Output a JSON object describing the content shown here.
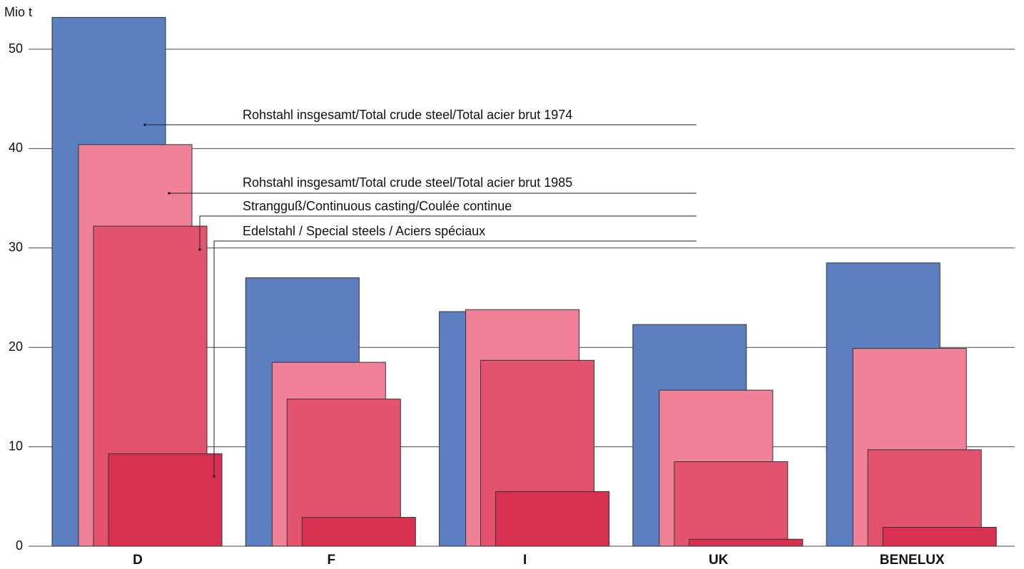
{
  "chart_data": {
    "type": "bar",
    "ylabel": "Mio t",
    "categories": [
      "D",
      "F",
      "I",
      "UK",
      "BENELUX"
    ],
    "series": [
      {
        "name": "Rohstahl insgesamt/Total crude steel/Total acier brut 1974",
        "color": "#5b7fc0",
        "values": [
          53.2,
          27.0,
          23.6,
          22.3,
          28.5
        ]
      },
      {
        "name": "Rohstahl insgesamt/Total crude steel/Total acier brut 1985",
        "color": "#f08199",
        "values": [
          40.4,
          18.5,
          23.8,
          15.7,
          19.9
        ]
      },
      {
        "name": "Strangguß/Continuous casting/Coulée continue",
        "color": "#e4536d",
        "values": [
          32.2,
          14.8,
          18.7,
          8.5,
          9.7
        ]
      },
      {
        "name": "Edelstahl / Special steels / Aciers spéciaux",
        "color": "#d8304f",
        "values": [
          9.3,
          2.9,
          5.5,
          0.7,
          1.9
        ]
      }
    ],
    "ylim": [
      0,
      55
    ],
    "yticks": [
      0,
      10,
      20,
      30,
      40,
      50
    ],
    "grid": true
  }
}
